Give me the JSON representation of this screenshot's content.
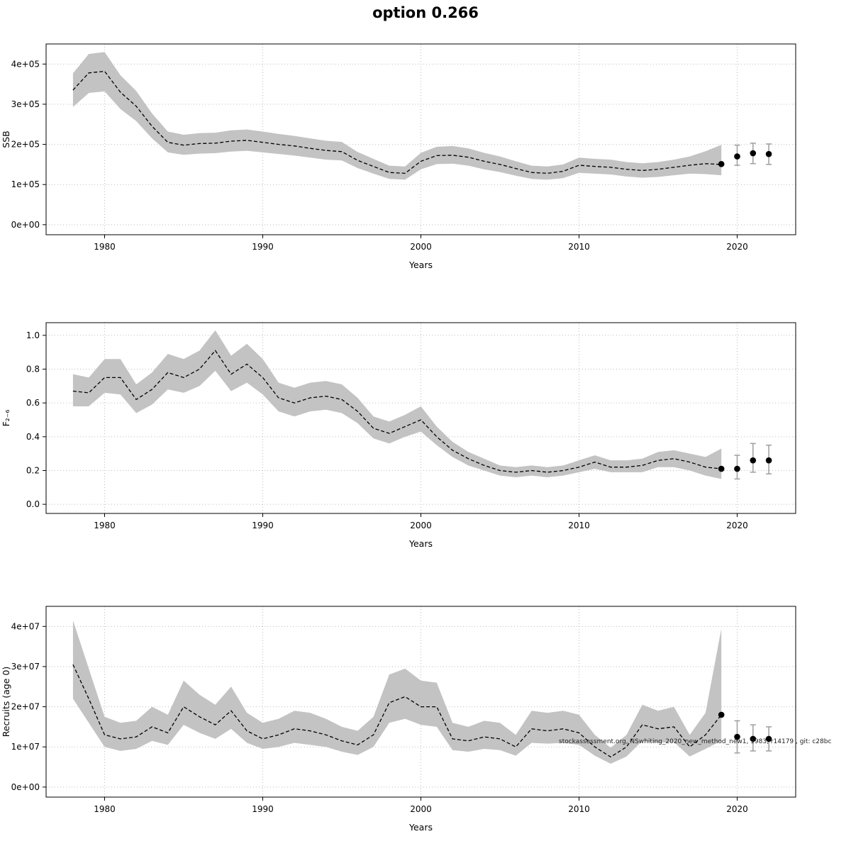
{
  "title": "option 0.266",
  "watermark": "stockassessment.org, NSwhiting_2020_new_method_new1, 1983, r14179 , git: c28bc",
  "chart_data": [
    {
      "type": "line",
      "name": "ssb",
      "ylabel": "SSB",
      "xlabel": "Years",
      "xlim": [
        1976.3,
        2023.7
      ],
      "ylim": [
        -25000,
        450000
      ],
      "xticks": [
        1980,
        1990,
        2000,
        2010,
        2020
      ],
      "xtick_labels": [
        "1980",
        "1990",
        "2000",
        "2010",
        "2020"
      ],
      "yticks": [
        0,
        100000,
        200000,
        300000,
        400000
      ],
      "ytick_labels": [
        "0e+00",
        "1e+05",
        "2e+05",
        "3e+05",
        "4e+05"
      ],
      "grid": true,
      "years": [
        1978,
        1979,
        1980,
        1981,
        1982,
        1983,
        1984,
        1985,
        1986,
        1987,
        1988,
        1989,
        1990,
        1991,
        1992,
        1993,
        1994,
        1995,
        1996,
        1997,
        1998,
        1999,
        2000,
        2001,
        2002,
        2003,
        2004,
        2005,
        2006,
        2007,
        2008,
        2009,
        2010,
        2011,
        2012,
        2013,
        2014,
        2015,
        2016,
        2017,
        2018,
        2019
      ],
      "estimate": [
        335000,
        378000,
        382000,
        330000,
        295000,
        245000,
        205000,
        198000,
        202000,
        203000,
        208000,
        210000,
        205000,
        200000,
        196000,
        190000,
        185000,
        182000,
        160000,
        145000,
        130000,
        128000,
        158000,
        172000,
        173000,
        168000,
        158000,
        150000,
        140000,
        130000,
        128000,
        133000,
        148000,
        145000,
        143000,
        138000,
        135000,
        138000,
        143000,
        148000,
        152000,
        150000
      ],
      "lower": [
        293000,
        328000,
        332000,
        288000,
        258000,
        215000,
        180000,
        174000,
        177000,
        178000,
        182000,
        184000,
        180000,
        176000,
        172000,
        167000,
        162000,
        160000,
        141000,
        127000,
        114000,
        112000,
        138000,
        151000,
        152000,
        147000,
        138000,
        131000,
        122000,
        114000,
        112000,
        116000,
        129000,
        127000,
        125000,
        120000,
        117000,
        119000,
        123000,
        127000,
        126000,
        123000
      ],
      "upper": [
        377000,
        425000,
        430000,
        372000,
        333000,
        277000,
        232000,
        224000,
        228000,
        229000,
        235000,
        237000,
        232000,
        226000,
        221000,
        215000,
        209000,
        206000,
        181000,
        164000,
        147000,
        145000,
        179000,
        194000,
        196000,
        190000,
        179000,
        170000,
        158000,
        147000,
        145000,
        150000,
        167000,
        164000,
        162000,
        156000,
        153000,
        156000,
        162000,
        170000,
        183000,
        199000
      ],
      "forecast": {
        "years": [
          2019,
          2020,
          2021,
          2022
        ],
        "values": [
          151000,
          170000,
          178000,
          176000
        ],
        "lower": [
          151000,
          148000,
          152000,
          150000
        ],
        "upper": [
          151000,
          198000,
          203000,
          201000
        ]
      }
    },
    {
      "type": "line",
      "name": "fishing-mortality",
      "ylabel": "F₂₋₆",
      "xlabel": "Years",
      "xlim": [
        1976.3,
        2023.7
      ],
      "ylim": [
        -0.054,
        1.075
      ],
      "xticks": [
        1980,
        1990,
        2000,
        2010,
        2020
      ],
      "xtick_labels": [
        "1980",
        "1990",
        "2000",
        "2010",
        "2020"
      ],
      "yticks": [
        0.0,
        0.2,
        0.4,
        0.6,
        0.8,
        1.0
      ],
      "ytick_labels": [
        "0.0",
        "0.2",
        "0.4",
        "0.6",
        "0.8",
        "1.0"
      ],
      "grid": true,
      "years": [
        1978,
        1979,
        1980,
        1981,
        1982,
        1983,
        1984,
        1985,
        1986,
        1987,
        1988,
        1989,
        1990,
        1991,
        1992,
        1993,
        1994,
        1995,
        1996,
        1997,
        1998,
        1999,
        2000,
        2001,
        2002,
        2003,
        2004,
        2005,
        2006,
        2007,
        2008,
        2009,
        2010,
        2011,
        2012,
        2013,
        2014,
        2015,
        2016,
        2017,
        2018,
        2019
      ],
      "estimate": [
        0.67,
        0.66,
        0.75,
        0.75,
        0.62,
        0.68,
        0.78,
        0.75,
        0.8,
        0.91,
        0.77,
        0.83,
        0.75,
        0.63,
        0.6,
        0.63,
        0.64,
        0.62,
        0.55,
        0.45,
        0.42,
        0.46,
        0.5,
        0.4,
        0.32,
        0.27,
        0.23,
        0.2,
        0.19,
        0.2,
        0.19,
        0.2,
        0.22,
        0.25,
        0.22,
        0.22,
        0.23,
        0.26,
        0.27,
        0.25,
        0.22,
        0.21
      ],
      "lower": [
        0.58,
        0.58,
        0.66,
        0.65,
        0.54,
        0.59,
        0.68,
        0.66,
        0.7,
        0.79,
        0.67,
        0.72,
        0.65,
        0.55,
        0.52,
        0.55,
        0.56,
        0.54,
        0.48,
        0.39,
        0.36,
        0.4,
        0.43,
        0.35,
        0.28,
        0.23,
        0.2,
        0.17,
        0.16,
        0.17,
        0.16,
        0.17,
        0.19,
        0.21,
        0.19,
        0.19,
        0.19,
        0.22,
        0.22,
        0.2,
        0.17,
        0.15
      ],
      "upper": [
        0.77,
        0.75,
        0.86,
        0.86,
        0.71,
        0.78,
        0.89,
        0.86,
        0.91,
        1.03,
        0.88,
        0.95,
        0.86,
        0.72,
        0.69,
        0.72,
        0.73,
        0.71,
        0.63,
        0.52,
        0.49,
        0.53,
        0.58,
        0.46,
        0.37,
        0.31,
        0.27,
        0.23,
        0.22,
        0.23,
        0.22,
        0.23,
        0.26,
        0.29,
        0.26,
        0.26,
        0.27,
        0.31,
        0.32,
        0.3,
        0.28,
        0.33
      ],
      "forecast": {
        "years": [
          2019,
          2020,
          2021,
          2022
        ],
        "values": [
          0.21,
          0.21,
          0.26,
          0.26
        ],
        "lower": [
          0.21,
          0.15,
          0.19,
          0.18
        ],
        "upper": [
          0.21,
          0.29,
          0.36,
          0.35
        ]
      }
    },
    {
      "type": "line",
      "name": "recruits",
      "ylabel": "Recruits (age 0)",
      "xlabel": "Years",
      "xlim": [
        1976.3,
        2023.7
      ],
      "ylim": [
        -2500000,
        45000000
      ],
      "xticks": [
        1980,
        1990,
        2000,
        2010,
        2020
      ],
      "xtick_labels": [
        "1980",
        "1990",
        "2000",
        "2010",
        "2020"
      ],
      "yticks": [
        0,
        10000000,
        20000000,
        30000000,
        40000000
      ],
      "ytick_labels": [
        "0e+00",
        "1e+07",
        "2e+07",
        "3e+07",
        "4e+07"
      ],
      "grid": true,
      "years": [
        1978,
        1979,
        1980,
        1981,
        1982,
        1983,
        1984,
        1985,
        1986,
        1987,
        1988,
        1989,
        1990,
        1991,
        1992,
        1993,
        1994,
        1995,
        1996,
        1997,
        1998,
        1999,
        2000,
        2001,
        2002,
        2003,
        2004,
        2005,
        2006,
        2007,
        2008,
        2009,
        2010,
        2011,
        2012,
        2013,
        2014,
        2015,
        2016,
        2017,
        2018,
        2019
      ],
      "estimate": [
        30500000.0,
        22000000.0,
        13000000.0,
        12000000.0,
        12500000.0,
        15000000.0,
        13500000.0,
        20000000.0,
        17500000.0,
        15500000.0,
        19000000.0,
        14000000.0,
        12000000.0,
        13000000.0,
        14500000.0,
        14000000.0,
        13000000.0,
        11500000.0,
        10500000.0,
        13000000.0,
        21000000.0,
        22500000.0,
        20000000.0,
        20000000.0,
        12000000.0,
        11500000.0,
        12500000.0,
        12000000.0,
        10000000.0,
        14500000.0,
        14000000.0,
        14500000.0,
        13500000.0,
        10000000.0,
        7500000.0,
        10000000.0,
        15500000.0,
        14500000.0,
        15000000.0,
        10000000.0,
        13000000.0,
        18000000.0
      ],
      "lower": [
        22000000.0,
        16000000.0,
        10000000.0,
        9000000.0,
        9500000.0,
        11500000.0,
        10500000.0,
        15500000.0,
        13500000.0,
        12000000.0,
        14500000.0,
        11000000.0,
        9500000.0,
        10000000.0,
        11000000.0,
        10500000.0,
        10000000.0,
        8800000.0,
        8000000.0,
        10000000.0,
        16000000.0,
        17000000.0,
        15500000.0,
        15000000.0,
        9200000.0,
        8800000.0,
        9500000.0,
        9200000.0,
        7800000.0,
        11000000.0,
        10800000.0,
        11000000.0,
        10500000.0,
        7800000.0,
        5800000.0,
        7600000.0,
        11500000.0,
        11000000.0,
        11200000.0,
        7600000.0,
        9500000.0,
        11500000.0
      ],
      "upper": [
        41500000.0,
        29500000.0,
        17500000.0,
        16000000.0,
        16500000.0,
        20000000.0,
        18000000.0,
        26500000.0,
        23000000.0,
        20500000.0,
        25000000.0,
        18500000.0,
        16000000.0,
        17000000.0,
        19000000.0,
        18500000.0,
        17000000.0,
        15000000.0,
        14000000.0,
        17500000.0,
        28000000.0,
        29500000.0,
        26500000.0,
        26000000.0,
        16000000.0,
        15000000.0,
        16500000.0,
        16000000.0,
        13000000.0,
        19000000.0,
        18500000.0,
        19000000.0,
        18000000.0,
        13000000.0,
        9800000.0,
        13000000.0,
        20500000.0,
        19000000.0,
        20000000.0,
        13000000.0,
        18500000.0,
        39500000.0
      ],
      "forecast": {
        "years": [
          2019,
          2020,
          2021,
          2022
        ],
        "values": [
          18000000.0,
          12500000.0,
          12000000.0,
          12000000.0
        ],
        "lower": [
          18000000.0,
          8500000.0,
          9000000.0,
          9000000.0
        ],
        "upper": [
          18000000.0,
          16500000.0,
          15500000.0,
          15000000.0
        ]
      }
    }
  ]
}
